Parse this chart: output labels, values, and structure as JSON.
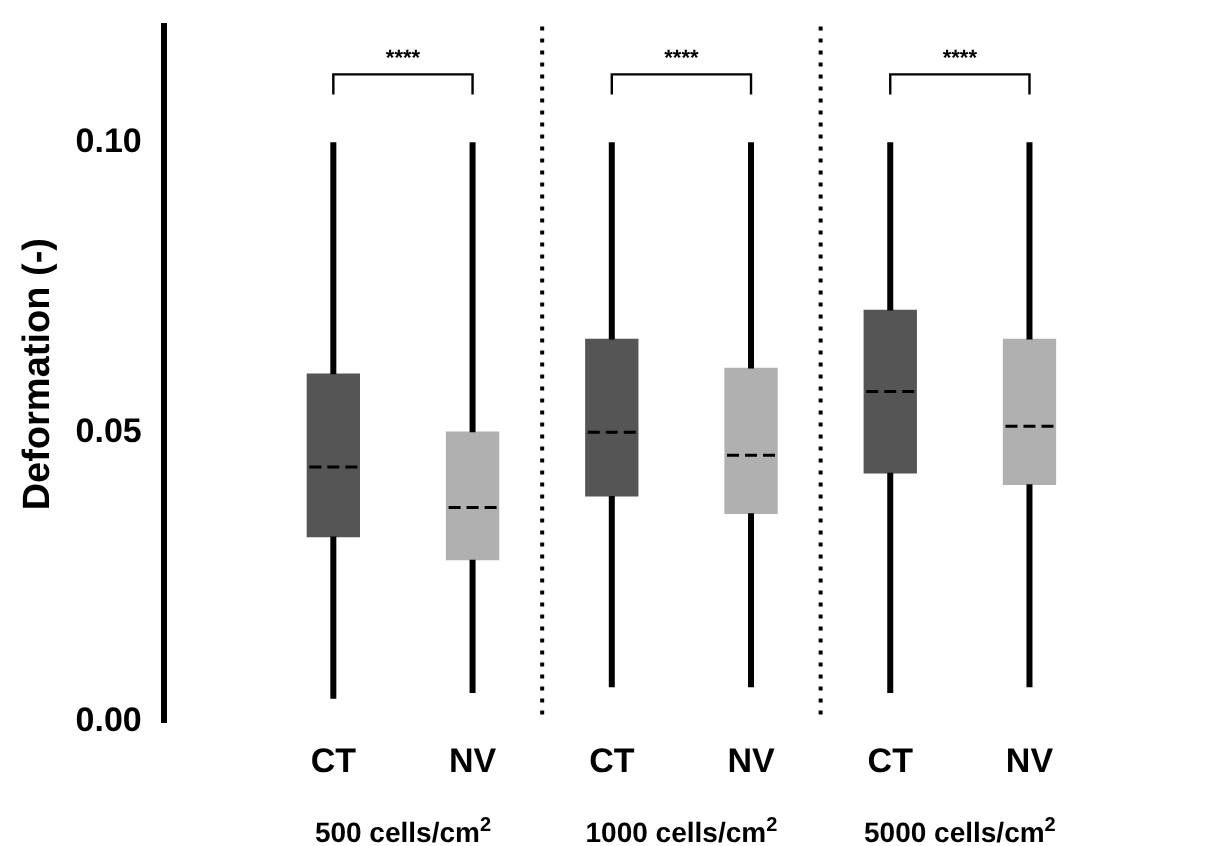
{
  "chart_data": {
    "type": "box",
    "ylabel": "Deformation (-)",
    "categories": [
      "CT",
      "NV",
      "CT",
      "NV",
      "CT",
      "NV"
    ],
    "boxes": [
      {
        "low": 0.004,
        "q1": 0.032,
        "median": 0.044,
        "q3": 0.06,
        "high": 0.1
      },
      {
        "low": 0.005,
        "q1": 0.028,
        "median": 0.037,
        "q3": 0.05,
        "high": 0.1
      },
      {
        "low": 0.006,
        "q1": 0.039,
        "median": 0.05,
        "q3": 0.066,
        "high": 0.1
      },
      {
        "low": 0.006,
        "q1": 0.036,
        "median": 0.046,
        "q3": 0.061,
        "high": 0.1
      },
      {
        "low": 0.005,
        "q1": 0.043,
        "median": 0.057,
        "q3": 0.071,
        "high": 0.1
      },
      {
        "low": 0.006,
        "q1": 0.041,
        "median": 0.051,
        "q3": 0.066,
        "high": 0.1
      }
    ],
    "colors": [
      "#555555",
      "#b0b0b0",
      "#555555",
      "#b0b0b0",
      "#555555",
      "#b0b0b0"
    ],
    "ylim": [
      0,
      0.12
    ],
    "yticks": [
      {
        "value": 0,
        "label": "0.00"
      },
      {
        "value": 0.05,
        "label": "0.05"
      },
      {
        "value": 0.1,
        "label": "0.10"
      }
    ],
    "annotations": [
      "****",
      "****",
      "****",
      "500 cells/cm$^{2}$",
      "1000 cells/cm$^{2}$",
      "5000 cells/cm$^{2}$"
    ],
    "grid": false,
    "legend": false
  }
}
